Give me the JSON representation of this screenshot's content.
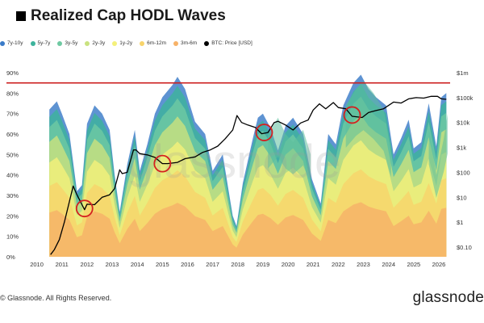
{
  "header": {
    "title": "Realized Cap HODL Waves"
  },
  "footer": {
    "copyright": "© Glassnode. All Rights Reserved.",
    "logo": "glassnode"
  },
  "watermark": "glassnode",
  "chart_data": {
    "type": "area",
    "title": "Realized Cap HODL Waves",
    "legend_position": "top-left",
    "legend": [
      {
        "name": "7y-10y",
        "color": "#3a7bc8"
      },
      {
        "name": "5y-7y",
        "color": "#3db39c"
      },
      {
        "name": "3y-5y",
        "color": "#6ec9a2"
      },
      {
        "name": "2y-3y",
        "color": "#c9e27f"
      },
      {
        "name": "1y-2y",
        "color": "#f4f07a"
      },
      {
        "name": "6m-12m",
        "color": "#f8d46b"
      },
      {
        "name": "3m-6m",
        "color": "#f7b268"
      },
      {
        "name": "BTC: Price [USD]",
        "color": "#000000"
      }
    ],
    "x_ticks": [
      "2010",
      "2011",
      "2012",
      "2013",
      "2014",
      "2015",
      "2016",
      "2017",
      "2018",
      "2019",
      "2020",
      "2021",
      "2022",
      "2023",
      "2024",
      "2025",
      "2026"
    ],
    "y_left_ticks": [
      "0%",
      "10%",
      "20%",
      "30%",
      "40%",
      "50%",
      "60%",
      "70%",
      "80%",
      "90%"
    ],
    "y_right_ticks": [
      "$0.10",
      "$1",
      "$10",
      "$100",
      "$1k",
      "$10k",
      "$100k",
      "$1m"
    ],
    "ylim_left": [
      0,
      90
    ],
    "ylim_right_log10": [
      -1,
      6
    ],
    "reference_line": {
      "value_pct": 85,
      "color": "#cc1f1f"
    },
    "stack_bands": [
      {
        "name": "3m-6m",
        "color": "#f7b268"
      },
      {
        "name": "6m-12m",
        "color": "#f8d46b"
      },
      {
        "name": "1y-2y",
        "color": "#f4f07a"
      },
      {
        "name": "2y-3y",
        "color": "#c9e27f"
      },
      {
        "name": "3y-5y",
        "color": "#6ec9a2"
      },
      {
        "name": "5y-7y",
        "color": "#3db39c"
      },
      {
        "name": "7y-10y",
        "color": "#3a7bc8"
      }
    ],
    "upper_envelope": [
      [
        2010.5,
        72
      ],
      [
        2010.8,
        76
      ],
      [
        2011.0,
        70
      ],
      [
        2011.3,
        60
      ],
      [
        2011.6,
        32
      ],
      [
        2011.8,
        35
      ],
      [
        2012.0,
        65
      ],
      [
        2012.3,
        74
      ],
      [
        2012.6,
        70
      ],
      [
        2012.9,
        62
      ],
      [
        2013.1,
        40
      ],
      [
        2013.3,
        22
      ],
      [
        2013.6,
        45
      ],
      [
        2013.9,
        62
      ],
      [
        2014.1,
        42
      ],
      [
        2014.4,
        55
      ],
      [
        2014.7,
        70
      ],
      [
        2015.0,
        78
      ],
      [
        2015.4,
        84
      ],
      [
        2015.6,
        88
      ],
      [
        2015.9,
        82
      ],
      [
        2016.3,
        66
      ],
      [
        2016.7,
        60
      ],
      [
        2017.0,
        42
      ],
      [
        2017.4,
        50
      ],
      [
        2017.8,
        20
      ],
      [
        2017.95,
        15
      ],
      [
        2018.2,
        36
      ],
      [
        2018.6,
        58
      ],
      [
        2018.8,
        68
      ],
      [
        2019.0,
        70
      ],
      [
        2019.3,
        63
      ],
      [
        2019.6,
        52
      ],
      [
        2019.9,
        64
      ],
      [
        2020.2,
        68
      ],
      [
        2020.6,
        60
      ],
      [
        2020.95,
        38
      ],
      [
        2021.3,
        26
      ],
      [
        2021.6,
        60
      ],
      [
        2021.9,
        55
      ],
      [
        2022.2,
        74
      ],
      [
        2022.6,
        85
      ],
      [
        2022.9,
        89
      ],
      [
        2023.2,
        82
      ],
      [
        2023.5,
        78
      ],
      [
        2023.9,
        74
      ],
      [
        2024.2,
        50
      ],
      [
        2024.5,
        58
      ],
      [
        2024.8,
        67
      ],
      [
        2025.0,
        53
      ],
      [
        2025.3,
        56
      ],
      [
        2025.6,
        75
      ],
      [
        2025.9,
        54
      ],
      [
        2026.1,
        78
      ],
      [
        2026.3,
        80
      ]
    ],
    "teal_band_top": [
      [
        2019.2,
        60
      ],
      [
        2019.6,
        68
      ],
      [
        2019.9,
        60
      ],
      [
        2020.2,
        56
      ],
      [
        2020.6,
        62
      ],
      [
        2020.9,
        50
      ],
      [
        2022.3,
        74
      ],
      [
        2022.7,
        82
      ],
      [
        2023.0,
        86
      ],
      [
        2023.4,
        80
      ],
      [
        2023.8,
        72
      ],
      [
        2024.1,
        54
      ],
      [
        2025.6,
        63
      ],
      [
        2025.9,
        40
      ],
      [
        2026.2,
        58
      ],
      [
        2026.35,
        70
      ]
    ],
    "btc_price_log10": [
      [
        2010.55,
        -1.3
      ],
      [
        2010.7,
        -1.1
      ],
      [
        2010.9,
        -0.7
      ],
      [
        2011.1,
        0.0
      ],
      [
        2011.4,
        1.25
      ],
      [
        2011.45,
        1.45
      ],
      [
        2011.6,
        1.1
      ],
      [
        2011.9,
        0.5
      ],
      [
        2012.0,
        0.72
      ],
      [
        2012.3,
        0.7
      ],
      [
        2012.6,
        1.0
      ],
      [
        2012.9,
        1.1
      ],
      [
        2013.1,
        1.35
      ],
      [
        2013.3,
        2.1
      ],
      [
        2013.4,
        1.95
      ],
      [
        2013.6,
        2.0
      ],
      [
        2013.85,
        2.9
      ],
      [
        2013.95,
        2.9
      ],
      [
        2014.1,
        2.75
      ],
      [
        2014.4,
        2.7
      ],
      [
        2014.7,
        2.6
      ],
      [
        2015.0,
        2.35
      ],
      [
        2015.2,
        2.35
      ],
      [
        2015.6,
        2.4
      ],
      [
        2015.9,
        2.55
      ],
      [
        2016.3,
        2.62
      ],
      [
        2016.6,
        2.8
      ],
      [
        2016.9,
        2.9
      ],
      [
        2017.2,
        3.05
      ],
      [
        2017.5,
        3.35
      ],
      [
        2017.8,
        3.7
      ],
      [
        2017.97,
        4.28
      ],
      [
        2018.15,
        4.0
      ],
      [
        2018.4,
        3.9
      ],
      [
        2018.7,
        3.8
      ],
      [
        2018.95,
        3.55
      ],
      [
        2019.2,
        3.6
      ],
      [
        2019.45,
        4.0
      ],
      [
        2019.6,
        4.05
      ],
      [
        2019.9,
        3.9
      ],
      [
        2020.2,
        3.7
      ],
      [
        2020.5,
        3.98
      ],
      [
        2020.8,
        4.1
      ],
      [
        2021.0,
        4.5
      ],
      [
        2021.25,
        4.75
      ],
      [
        2021.5,
        4.55
      ],
      [
        2021.8,
        4.8
      ],
      [
        2022.0,
        4.6
      ],
      [
        2022.3,
        4.55
      ],
      [
        2022.55,
        4.25
      ],
      [
        2022.95,
        4.2
      ],
      [
        2023.2,
        4.4
      ],
      [
        2023.5,
        4.48
      ],
      [
        2023.8,
        4.55
      ],
      [
        2024.2,
        4.82
      ],
      [
        2024.5,
        4.78
      ],
      [
        2024.8,
        4.95
      ],
      [
        2025.1,
        5.0
      ],
      [
        2025.4,
        4.98
      ],
      [
        2025.7,
        5.05
      ],
      [
        2025.95,
        5.05
      ],
      [
        2026.1,
        4.95
      ],
      [
        2026.3,
        4.93
      ]
    ],
    "highlighted_points": [
      {
        "x": 2011.9,
        "y_log10": 0.55
      },
      {
        "x": 2015.0,
        "y_log10": 2.35
      },
      {
        "x": 2019.05,
        "y_log10": 3.6
      },
      {
        "x": 2022.55,
        "y_log10": 4.3
      }
    ]
  }
}
